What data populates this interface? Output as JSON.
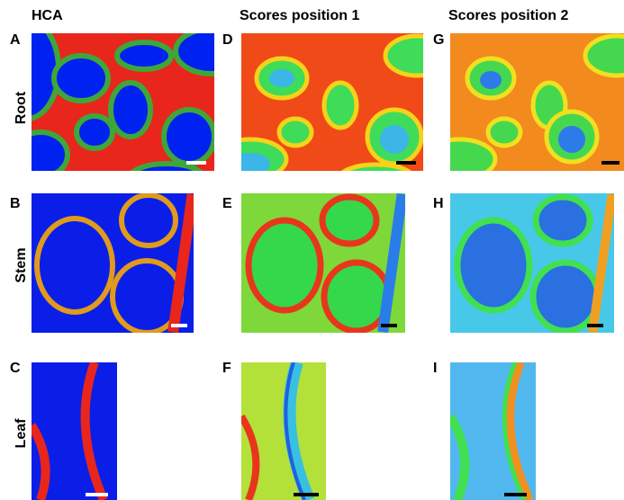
{
  "columns": [
    "HCA",
    "Scores position 1",
    "Scores position 2"
  ],
  "rows": [
    "Root",
    "Stem",
    "Leaf"
  ],
  "panels": [
    [
      "A",
      "D",
      "G"
    ],
    [
      "B",
      "E",
      "H"
    ],
    [
      "C",
      "F",
      "I"
    ]
  ]
}
